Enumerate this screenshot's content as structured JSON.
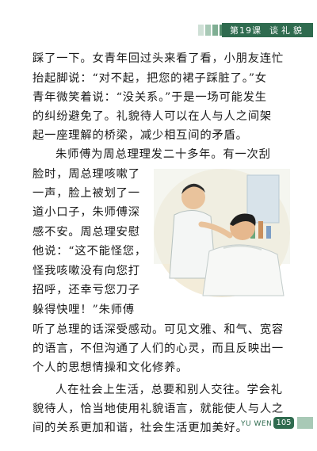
{
  "header": {
    "lesson_number": "第19课",
    "lesson_title": "谈礼貌",
    "accent_color": "#2f6b4f"
  },
  "paragraphs": {
    "lines": [
      "踩了一下。女青年回过头来看了看，小朋友连忙",
      "抬起脚说：“对不起，把您的裙子踩脏了。”女",
      "青年微笑着说：“没关系。”于是一场可能发生",
      "的纠纷避免了。礼貌待人可以在人与人之间架",
      "起一座理解的桥梁，减少相互间的矛盾。",
      "朱师傅为周总理理发二十多年。有一次刮",
      "脸时，周总理咳嗽了",
      "一声，脸上被划了一",
      "道小口子，朱师傅深",
      "感不安。周总理安慰",
      "他说：“这不能怪您，",
      "怪我咳嗽没有向您打",
      "招呼，还幸亏您刀子",
      "躲得快哩！”朱师傅",
      "听了总理的话深受感动。可见文雅、和气、宽容",
      "的语言，不但沟通了人们的心灵，而且反映出一",
      "个人的思想情操和文化修养。",
      "人在社会上生活，总要和别人交往。学会礼",
      "貌待人，恰当地使用礼貌语言，就能使人与人之",
      "间的关系更加和谐，社会生活更加美好。"
    ]
  },
  "footer": {
    "label": "YU WEN",
    "page_number": "105"
  }
}
